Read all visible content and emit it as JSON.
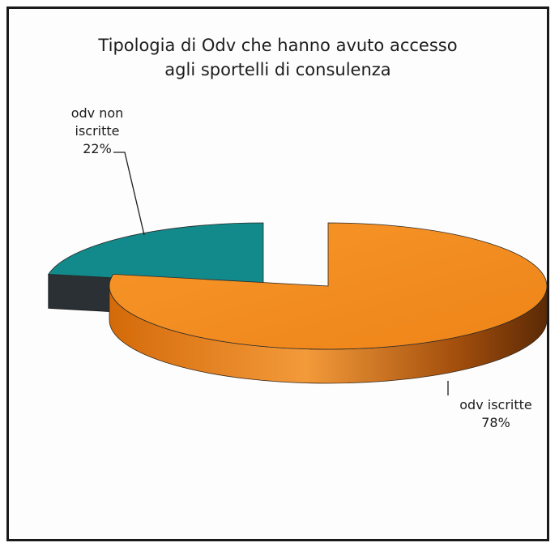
{
  "chart_data": {
    "type": "pie",
    "title": [
      "Tipologia di Odv che hanno avuto accesso",
      "agli sportelli di consulenza"
    ],
    "slices": [
      {
        "label_lines": [
          "odv non",
          "iscritte",
          "22%"
        ],
        "value": 22,
        "color": "#12898a"
      },
      {
        "label_lines": [
          "odv iscritte",
          "78%"
        ],
        "value": 78,
        "color": "#f08a1c"
      }
    ],
    "exploded": true,
    "style": "3d",
    "legend": "none"
  }
}
